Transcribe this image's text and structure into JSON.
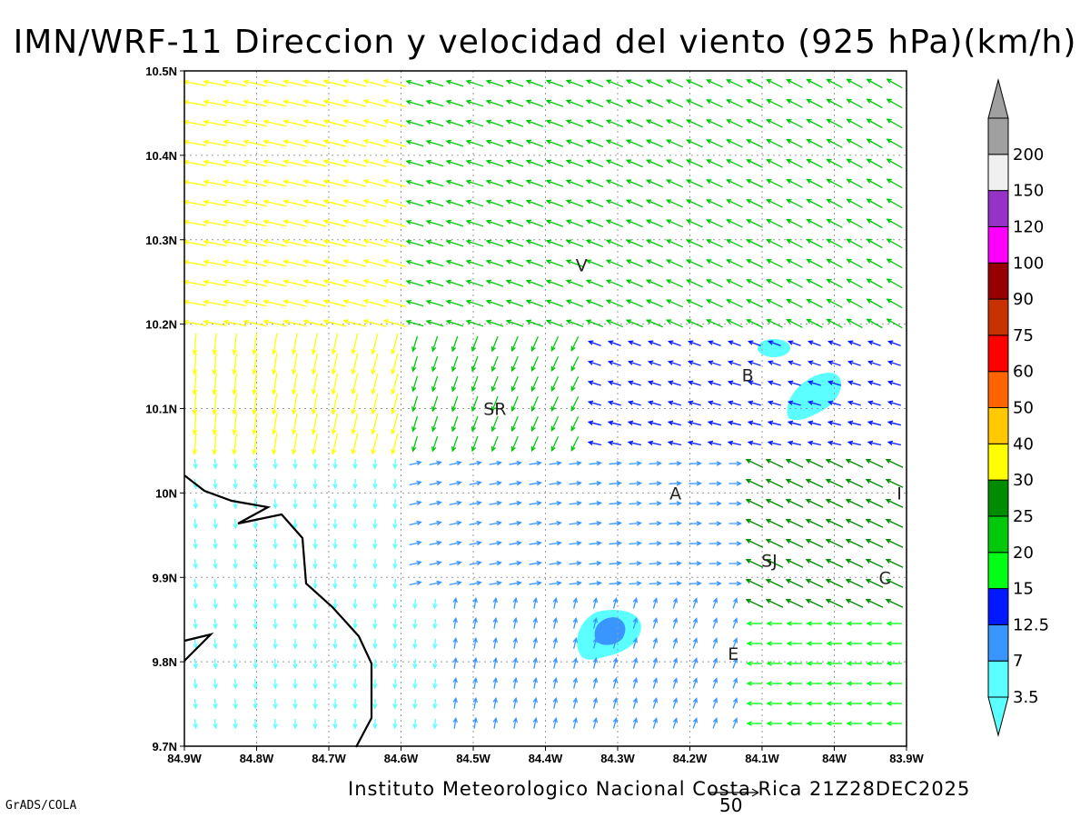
{
  "title": "IMN/WRF-11 Direccion y velocidad del viento (925 hPa)(km/h)",
  "footer": "Instituto Meteorologico Nacional Costa Rica  21Z28DEC2025",
  "credit": "GrADS/COLA",
  "reference_vector": {
    "label": "50",
    "value": 50
  },
  "map": {
    "lon_range": [
      -84.9,
      -83.9
    ],
    "lat_range": [
      9.7,
      10.5
    ],
    "x_tick_labels": [
      "84.9W",
      "84.8W",
      "84.7W",
      "84.6W",
      "84.5W",
      "84.4W",
      "84.3W",
      "84.2W",
      "84.1W",
      "84W",
      "83.9W"
    ],
    "y_tick_labels": [
      "9.7N",
      "9.8N",
      "9.9N",
      "10N",
      "10.1N",
      "10.2N",
      "10.3N",
      "10.4N",
      "10.5N"
    ],
    "grid": true,
    "coastline_color": "#000000",
    "cities": [
      {
        "name": "V",
        "lon": -84.35,
        "lat": 10.27
      },
      {
        "name": "SR",
        "lon": -84.47,
        "lat": 10.1
      },
      {
        "name": "B",
        "lon": -84.12,
        "lat": 10.14
      },
      {
        "name": "A",
        "lon": -84.22,
        "lat": 10.0
      },
      {
        "name": "I",
        "lon": -83.91,
        "lat": 10.0
      },
      {
        "name": "SJ",
        "lon": -84.09,
        "lat": 9.92
      },
      {
        "name": "C",
        "lon": -83.93,
        "lat": 9.9
      },
      {
        "name": "E",
        "lon": -84.14,
        "lat": 9.81
      }
    ]
  },
  "colorbar": {
    "levels": [
      "3.5",
      "7",
      "12.5",
      "15",
      "20",
      "25",
      "30",
      "40",
      "50",
      "60",
      "75",
      "90",
      "100",
      "120",
      "150",
      "200"
    ],
    "colors": [
      "#5cffff",
      "#3a96ff",
      "#0019ff",
      "#00ff14",
      "#00c80a",
      "#008c00",
      "#ffff00",
      "#ffc800",
      "#ff6400",
      "#ff0000",
      "#c83200",
      "#960000",
      "#ff00ff",
      "#9632c8",
      "#f0f0f0",
      "#a0a0a0"
    ]
  }
}
